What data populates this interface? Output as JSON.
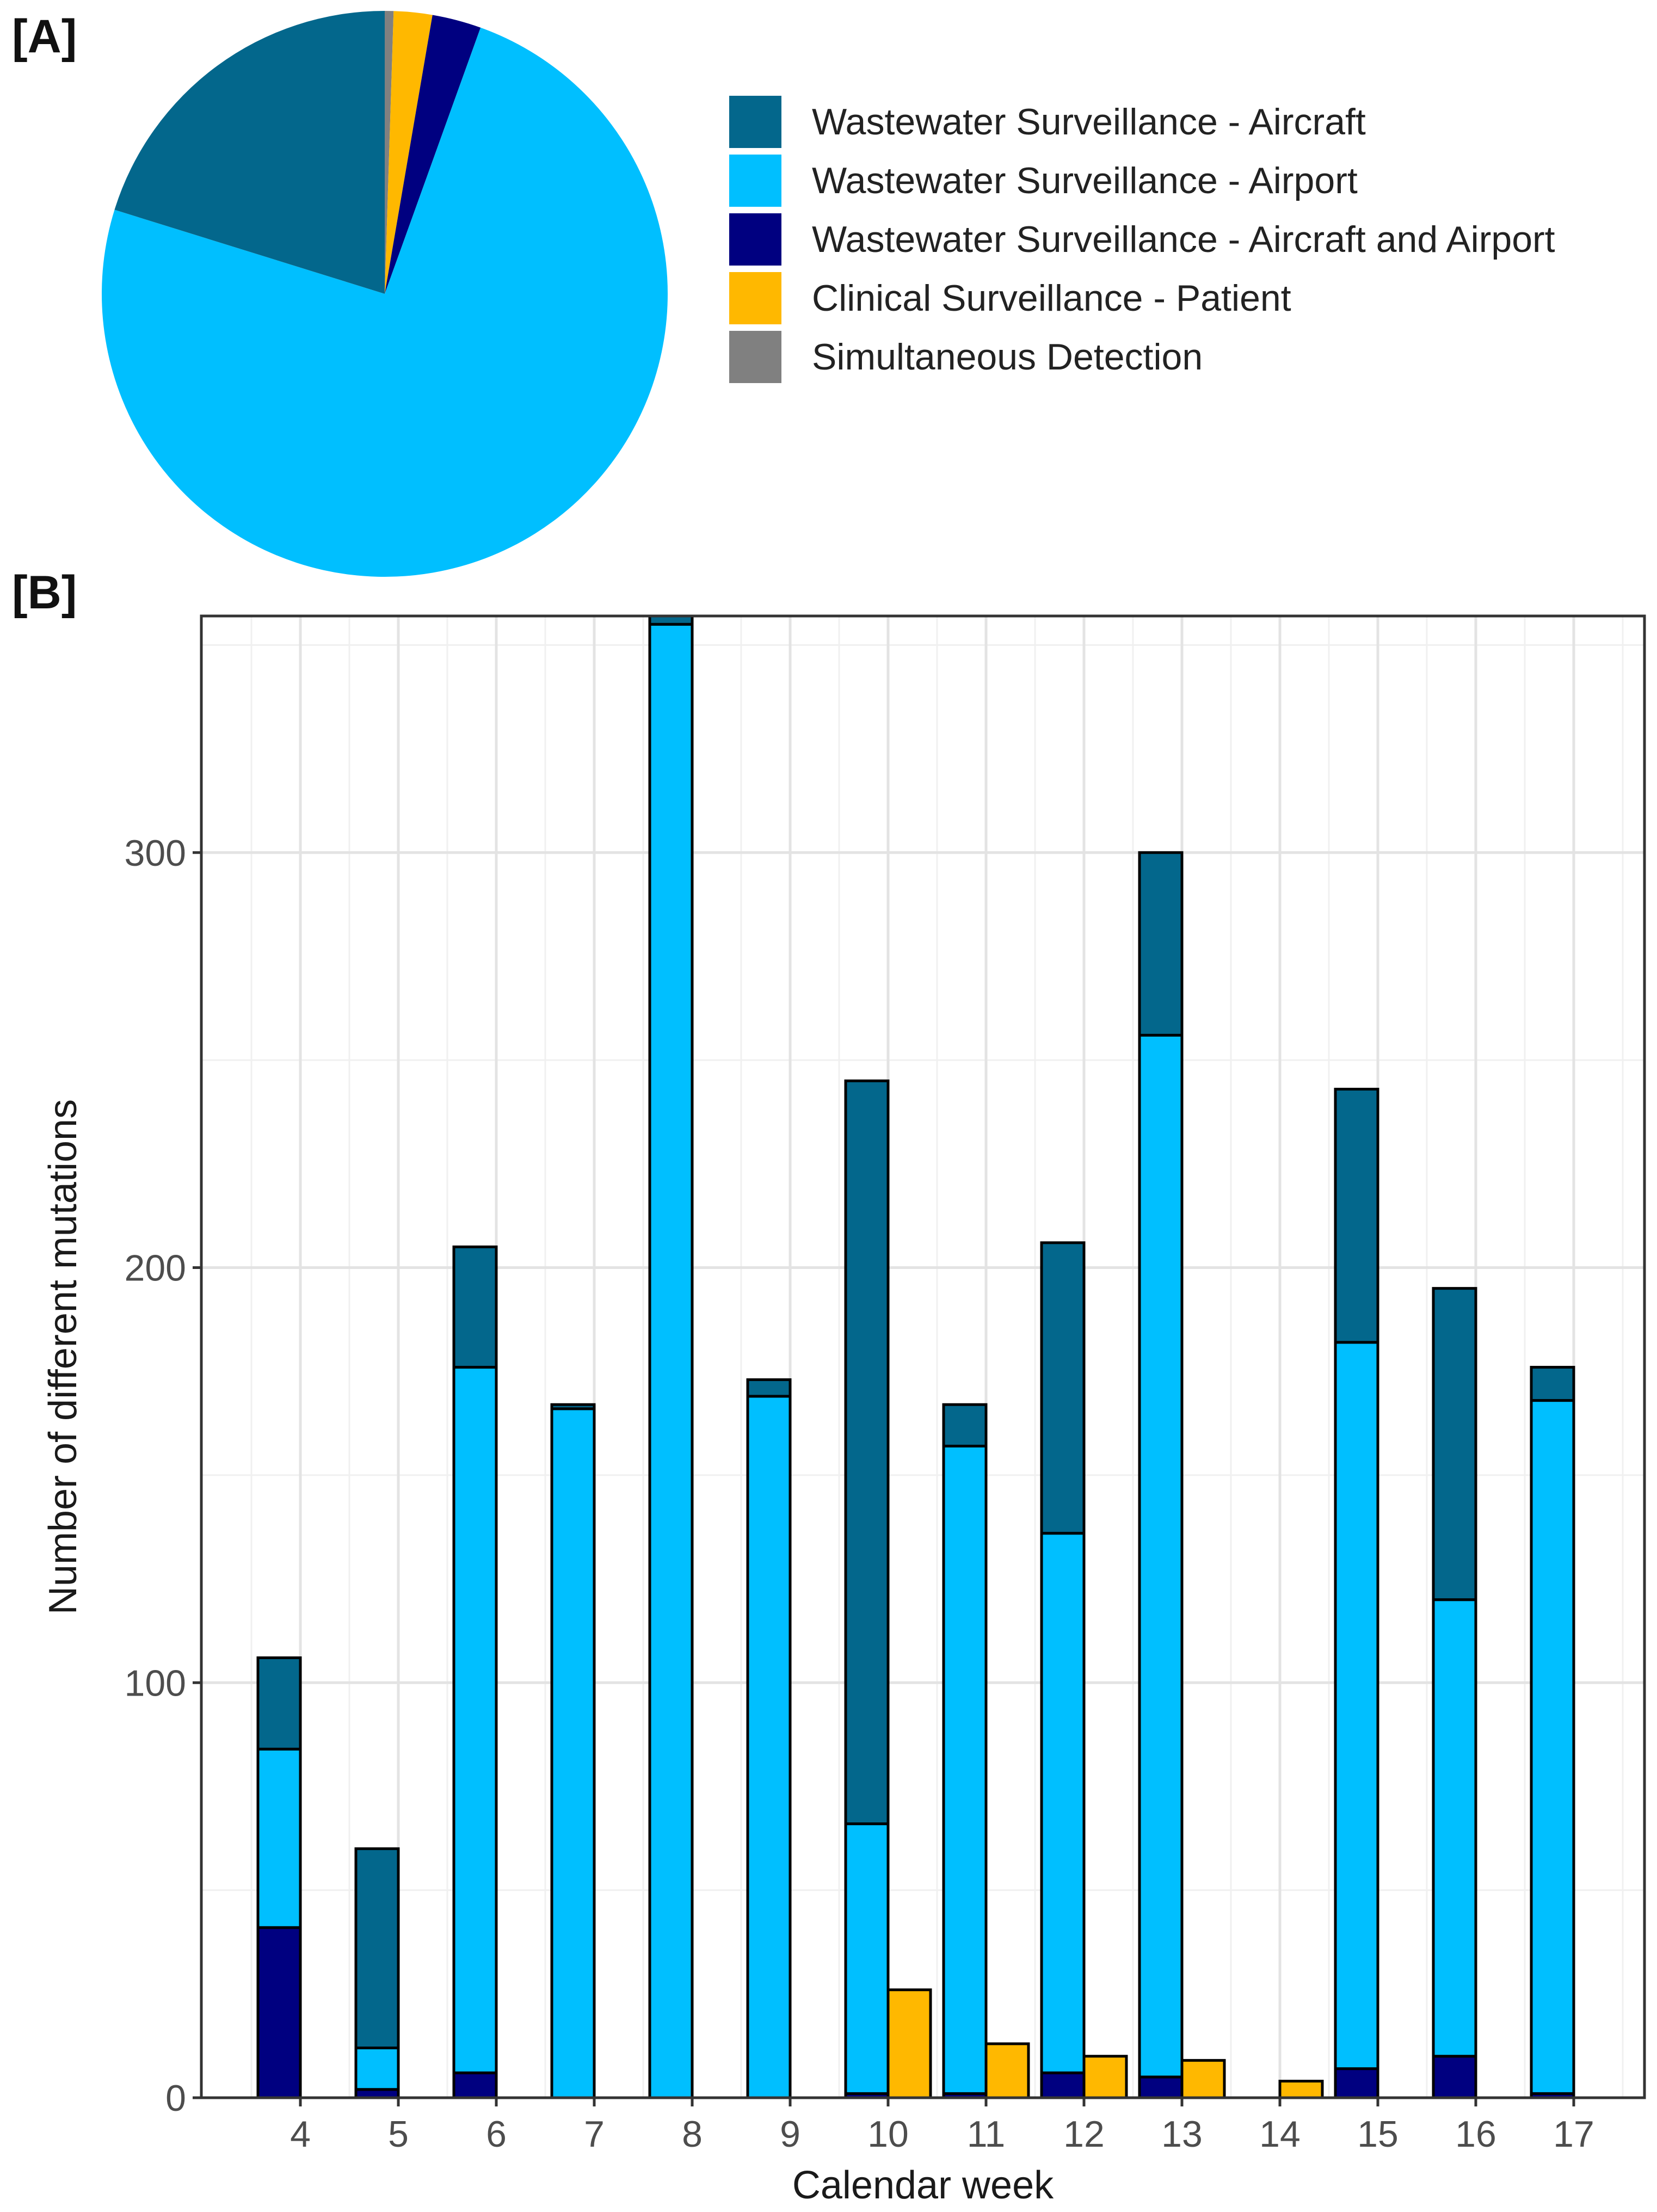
{
  "panels": {
    "a_label": "[A]",
    "b_label": "[B]"
  },
  "colors": {
    "aircraft": "#03678c",
    "airport": "#00bfff",
    "aircraft_and_airport": "#000080",
    "patient": "#ffb800",
    "simultaneous": "#808080"
  },
  "legend": [
    {
      "key": "aircraft",
      "label": "Wastewater Surveillance - Aircraft"
    },
    {
      "key": "airport",
      "label": "Wastewater Surveillance - Airport"
    },
    {
      "key": "aircraft_and_airport",
      "label": "Wastewater Surveillance - Aircraft and Airport"
    },
    {
      "key": "patient",
      "label": "Clinical Surveillance - Patient"
    },
    {
      "key": "simultaneous",
      "label": "Simultaneous Detection"
    }
  ],
  "chart_data": [
    {
      "type": "pie",
      "panel": "A",
      "slices": [
        {
          "key": "simultaneous",
          "label": "Simultaneous Detection",
          "value": 0.5
        },
        {
          "key": "patient",
          "label": "Clinical Surveillance - Patient",
          "value": 2.2
        },
        {
          "key": "aircraft_and_airport",
          "label": "Wastewater Surveillance - Aircraft and Airport",
          "value": 2.8
        },
        {
          "key": "airport",
          "label": "Wastewater Surveillance - Airport",
          "value": 74.3
        },
        {
          "key": "aircraft",
          "label": "Wastewater Surveillance - Aircraft",
          "value": 20.2
        }
      ]
    },
    {
      "type": "bar",
      "panel": "B",
      "xlabel": "Calendar week",
      "ylabel": "Number of different mutations",
      "ylim": [
        0,
        357
      ],
      "yticks": [
        0,
        100,
        200,
        300
      ],
      "categories": [
        "4",
        "5",
        "6",
        "7",
        "8",
        "9",
        "10",
        "11",
        "12",
        "13",
        "14",
        "15",
        "16",
        "17"
      ],
      "stacked_series": [
        {
          "key": "aircraft_and_airport",
          "name": "Wastewater Surveillance - Aircraft and Airport",
          "values": [
            41,
            2,
            6,
            0,
            0,
            0,
            1,
            1,
            6,
            5,
            0,
            7,
            10,
            1
          ]
        },
        {
          "key": "airport",
          "name": "Wastewater Surveillance - Airport",
          "values": [
            43,
            10,
            170,
            166,
            355,
            169,
            65,
            156,
            130,
            251,
            0,
            175,
            110,
            167
          ]
        },
        {
          "key": "aircraft",
          "name": "Wastewater Surveillance - Aircraft",
          "values": [
            22,
            48,
            29,
            1,
            2,
            4,
            179,
            10,
            70,
            44,
            0,
            61,
            75,
            8
          ]
        }
      ],
      "side_series": {
        "key": "patient",
        "name": "Clinical Surveillance - Patient",
        "values": [
          0,
          0,
          0,
          0,
          0,
          0,
          26,
          13,
          10,
          9,
          4,
          0,
          0,
          0
        ]
      }
    }
  ]
}
